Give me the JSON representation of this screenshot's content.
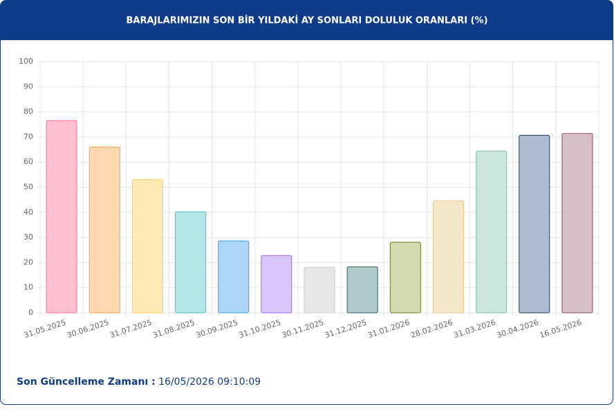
{
  "chart_data": {
    "type": "bar",
    "title": "BARAJLARIMIZIN SON BİR YILDAKİ AY SONLARI DOLULUK ORANLARI (%)",
    "categories": [
      "31.05.2025",
      "30.06.2025",
      "31.07.2025",
      "31.08.2025",
      "30.09.2025",
      "31.10.2025",
      "30.11.2025",
      "31.12.2025",
      "31.01.2026",
      "28.02.2026",
      "31.03.2026",
      "30.04.2026",
      "16.05.2026"
    ],
    "values": [
      76.5,
      66,
      53,
      40.2,
      28.6,
      22.8,
      18.1,
      18.3,
      28.1,
      44.6,
      64.4,
      70.7,
      71.4
    ],
    "colors": [
      "#ffc0cf",
      "#ffd7b0",
      "#ffe9b5",
      "#b3e6e6",
      "#acd6f7",
      "#d9c6fb",
      "#e6e7e9",
      "#b0c9cb",
      "#d3d9b1",
      "#f5e8c8",
      "#cce6de",
      "#aebbcf",
      "#d6c0c6"
    ],
    "border_colors": [
      "#ff6b8f",
      "#ff9f40",
      "#ffcd56",
      "#4bc0c0",
      "#36a2eb",
      "#9966ff",
      "#c9cbcf",
      "#2f5d62",
      "#6b7a1b",
      "#e8c98a",
      "#7fbfa8",
      "#1f3a5f",
      "#8e4c5b"
    ],
    "ylim": [
      0,
      100
    ],
    "yticks": [
      0,
      10,
      20,
      30,
      40,
      50,
      60,
      70,
      80,
      90,
      100
    ],
    "grid": true
  },
  "footer": {
    "label": "Son Güncelleme Zamanı :",
    "value": "16/05/2026 09:10:09"
  }
}
